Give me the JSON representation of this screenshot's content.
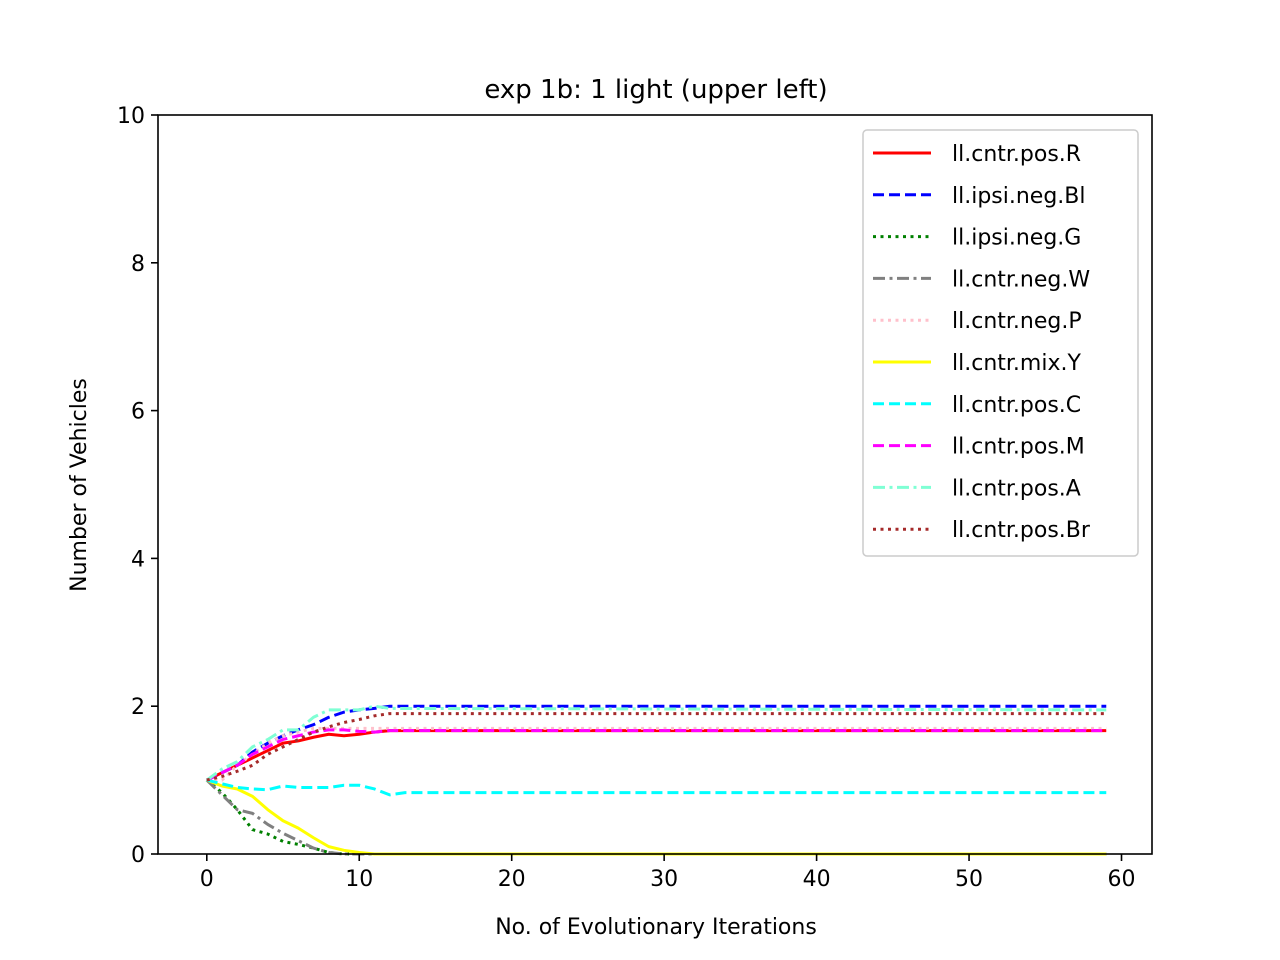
{
  "chart_data": {
    "type": "line",
    "title": "exp 1b: 1 light (upper left)",
    "xlabel": "No. of Evolutionary Iterations",
    "ylabel": "Number of Vehicles",
    "xlim": [
      -3.2,
      62
    ],
    "ylim": [
      0,
      10
    ],
    "xticks": [
      0,
      10,
      20,
      30,
      40,
      50,
      60
    ],
    "yticks": [
      0,
      2,
      4,
      6,
      8,
      10
    ],
    "grid": false,
    "legend_position": "top-right",
    "series": [
      {
        "name": "ll.cntr.pos.R",
        "color": "#ff0000",
        "dash": "solid",
        "points": [
          [
            0,
            1.0
          ],
          [
            1,
            1.1
          ],
          [
            2,
            1.2
          ],
          [
            3,
            1.3
          ],
          [
            4,
            1.4
          ],
          [
            5,
            1.5
          ],
          [
            6,
            1.53
          ],
          [
            7,
            1.58
          ],
          [
            8,
            1.62
          ],
          [
            9,
            1.6
          ],
          [
            10,
            1.62
          ],
          [
            11,
            1.65
          ],
          [
            12,
            1.67
          ],
          [
            59,
            1.67
          ]
        ]
      },
      {
        "name": "ll.ipsi.neg.Bl",
        "color": "#0000ff",
        "dash": "dashed",
        "points": [
          [
            0,
            1.0
          ],
          [
            1,
            1.1
          ],
          [
            2,
            1.2
          ],
          [
            3,
            1.38
          ],
          [
            4,
            1.5
          ],
          [
            5,
            1.6
          ],
          [
            6,
            1.68
          ],
          [
            7,
            1.75
          ],
          [
            8,
            1.85
          ],
          [
            9,
            1.92
          ],
          [
            10,
            1.95
          ],
          [
            11,
            1.97
          ],
          [
            12,
            2.0
          ],
          [
            14,
            2.0
          ],
          [
            59,
            2.0
          ]
        ]
      },
      {
        "name": "ll.ipsi.neg.G",
        "color": "#008000",
        "dash": "dotted",
        "points": [
          [
            0,
            1.0
          ],
          [
            1,
            0.83
          ],
          [
            2,
            0.6
          ],
          [
            3,
            0.33
          ],
          [
            4,
            0.27
          ],
          [
            5,
            0.17
          ],
          [
            6,
            0.13
          ],
          [
            7,
            0.08
          ],
          [
            8,
            0.02
          ],
          [
            9,
            0.0
          ],
          [
            59,
            0.0
          ]
        ]
      },
      {
        "name": "ll.cntr.neg.W",
        "color": "#808080",
        "dash": "dashdot",
        "points": [
          [
            0,
            1.0
          ],
          [
            1,
            0.8
          ],
          [
            2,
            0.6
          ],
          [
            3,
            0.55
          ],
          [
            4,
            0.4
          ],
          [
            5,
            0.28
          ],
          [
            6,
            0.18
          ],
          [
            7,
            0.08
          ],
          [
            8,
            0.02
          ],
          [
            9,
            0.0
          ],
          [
            59,
            0.0
          ]
        ]
      },
      {
        "name": "ll.cntr.neg.P",
        "color": "#ffc0cb",
        "dash": "dotted",
        "points": [
          [
            0,
            1.0
          ],
          [
            1,
            1.0
          ],
          [
            2,
            1.2
          ],
          [
            3,
            1.35
          ],
          [
            4,
            1.5
          ],
          [
            5,
            1.6
          ],
          [
            6,
            1.65
          ],
          [
            7,
            1.7
          ],
          [
            8,
            1.7
          ],
          [
            9,
            1.7
          ],
          [
            10,
            1.7
          ],
          [
            59,
            1.7
          ]
        ]
      },
      {
        "name": "ll.cntr.mix.Y",
        "color": "#ffff00",
        "dash": "solid",
        "points": [
          [
            0,
            1.0
          ],
          [
            1,
            0.92
          ],
          [
            2,
            0.88
          ],
          [
            3,
            0.78
          ],
          [
            4,
            0.6
          ],
          [
            5,
            0.45
          ],
          [
            6,
            0.35
          ],
          [
            7,
            0.22
          ],
          [
            8,
            0.1
          ],
          [
            9,
            0.05
          ],
          [
            10,
            0.02
          ],
          [
            11,
            0.0
          ],
          [
            59,
            0.0
          ]
        ]
      },
      {
        "name": "ll.cntr.pos.C",
        "color": "#00ffff",
        "dash": "dashed",
        "points": [
          [
            0,
            1.0
          ],
          [
            1,
            0.95
          ],
          [
            2,
            0.9
          ],
          [
            3,
            0.88
          ],
          [
            4,
            0.87
          ],
          [
            5,
            0.92
          ],
          [
            6,
            0.9
          ],
          [
            7,
            0.9
          ],
          [
            8,
            0.9
          ],
          [
            9,
            0.93
          ],
          [
            10,
            0.93
          ],
          [
            11,
            0.88
          ],
          [
            12,
            0.8
          ],
          [
            13,
            0.83
          ],
          [
            59,
            0.83
          ]
        ]
      },
      {
        "name": "ll.cntr.pos.M",
        "color": "#ff00ff",
        "dash": "dashed",
        "points": [
          [
            0,
            1.0
          ],
          [
            1,
            1.1
          ],
          [
            2,
            1.2
          ],
          [
            3,
            1.35
          ],
          [
            4,
            1.45
          ],
          [
            5,
            1.55
          ],
          [
            6,
            1.6
          ],
          [
            7,
            1.65
          ],
          [
            8,
            1.68
          ],
          [
            9,
            1.68
          ],
          [
            10,
            1.66
          ],
          [
            11,
            1.65
          ],
          [
            12,
            1.67
          ],
          [
            59,
            1.67
          ]
        ]
      },
      {
        "name": "ll.cntr.pos.A",
        "color": "#7fffd4",
        "dash": "dashdot",
        "points": [
          [
            0,
            1.0
          ],
          [
            1,
            1.15
          ],
          [
            2,
            1.25
          ],
          [
            3,
            1.45
          ],
          [
            4,
            1.55
          ],
          [
            5,
            1.68
          ],
          [
            6,
            1.68
          ],
          [
            7,
            1.85
          ],
          [
            8,
            1.95
          ],
          [
            9,
            1.95
          ],
          [
            10,
            1.95
          ],
          [
            11,
            2.0
          ],
          [
            12,
            1.97
          ],
          [
            59,
            1.95
          ]
        ]
      },
      {
        "name": "ll.cntr.pos.Br",
        "color": "#a52a2a",
        "dash": "dotted",
        "points": [
          [
            0,
            1.0
          ],
          [
            1,
            1.05
          ],
          [
            2,
            1.12
          ],
          [
            3,
            1.2
          ],
          [
            4,
            1.35
          ],
          [
            5,
            1.45
          ],
          [
            6,
            1.55
          ],
          [
            7,
            1.65
          ],
          [
            8,
            1.72
          ],
          [
            9,
            1.78
          ],
          [
            10,
            1.82
          ],
          [
            11,
            1.87
          ],
          [
            12,
            1.9
          ],
          [
            13,
            1.9
          ],
          [
            59,
            1.9
          ]
        ]
      }
    ]
  }
}
